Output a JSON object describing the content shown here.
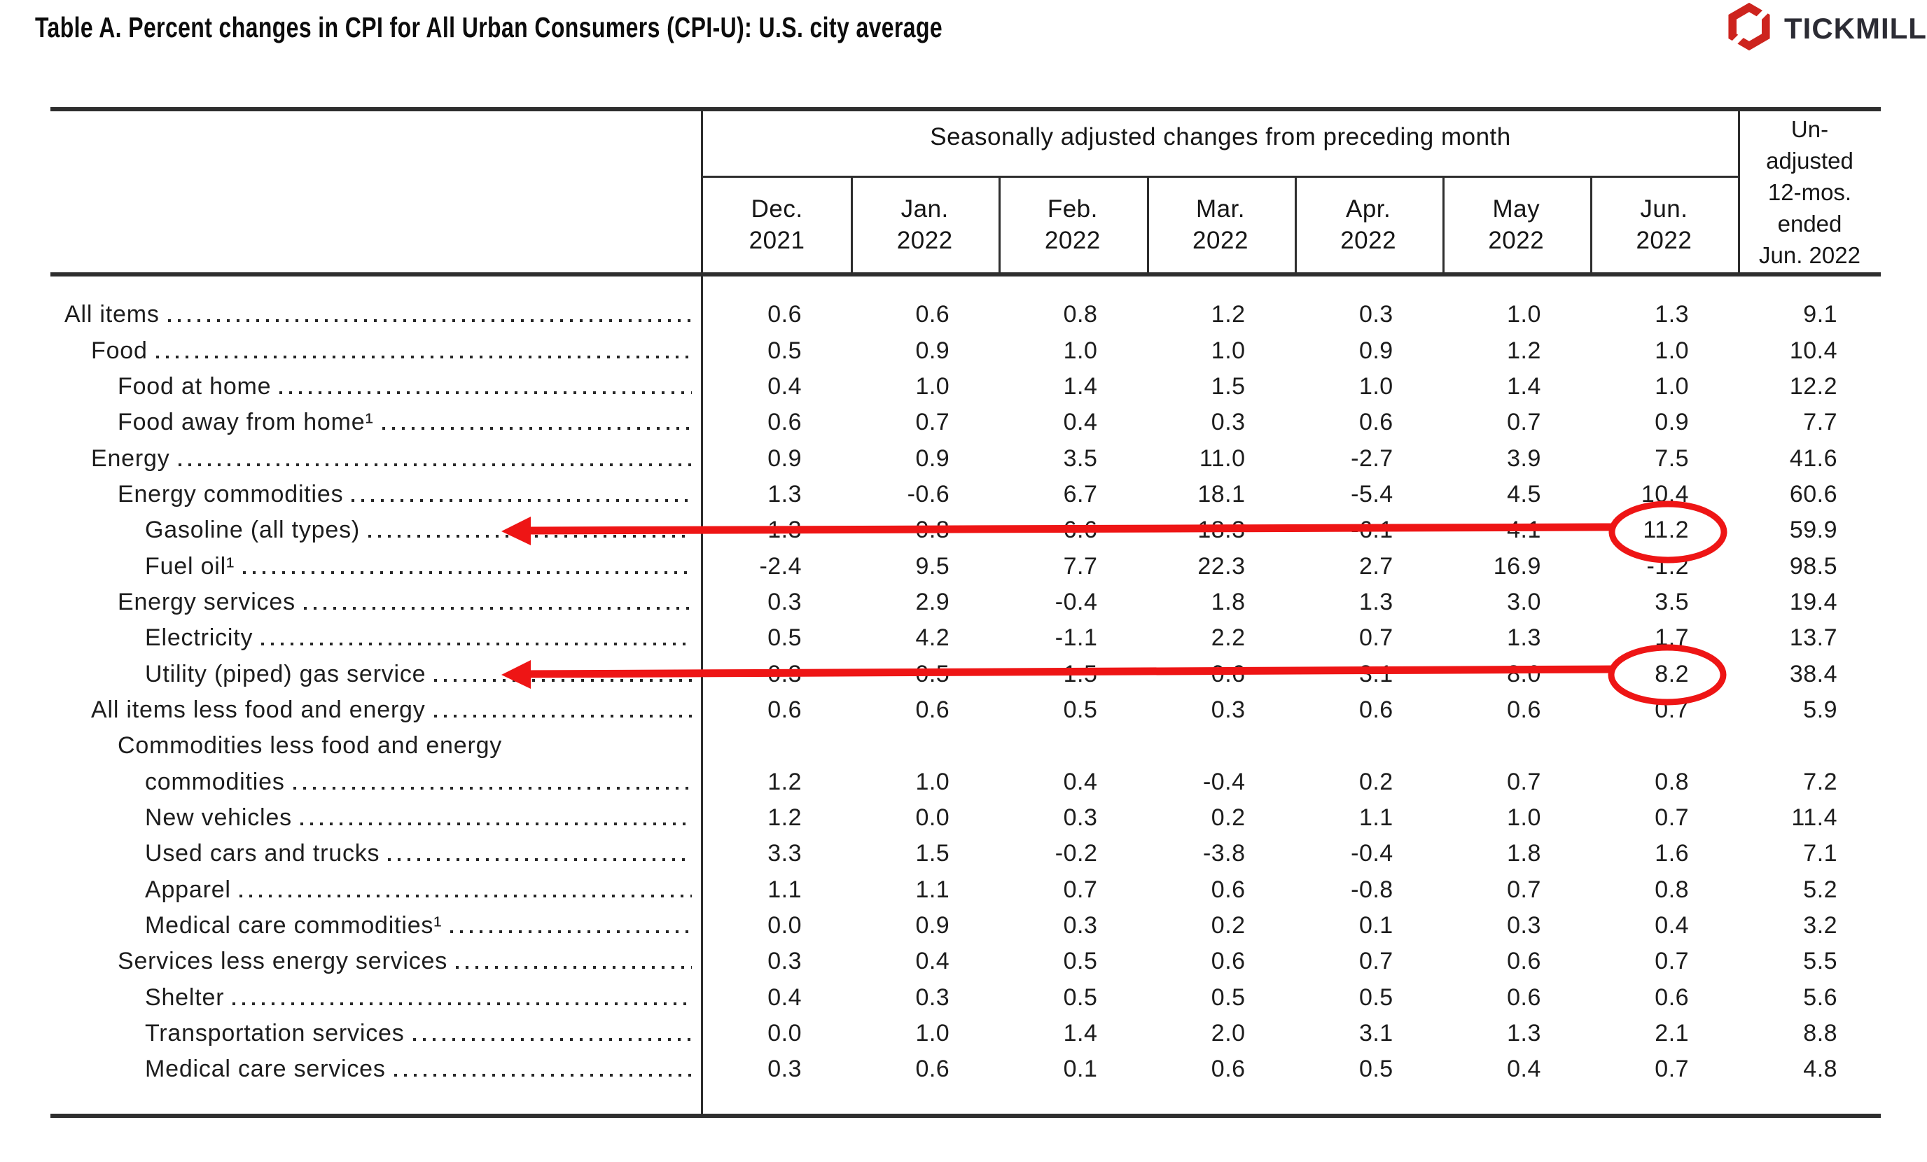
{
  "title": "Table A. Percent changes in CPI for All Urban Consumers (CPI-U): U.S. city average",
  "logo": {
    "brand": "TICKMILL"
  },
  "colors": {
    "annotation_red": "#ee1515",
    "logo_red": "#cd241e",
    "logo_text": "#2c2c34"
  },
  "table": {
    "header": {
      "group_title": "Seasonally adjusted changes from preceding month",
      "months": [
        {
          "line1": "Dec.",
          "line2": "2021"
        },
        {
          "line1": "Jan.",
          "line2": "2022"
        },
        {
          "line1": "Feb.",
          "line2": "2022"
        },
        {
          "line1": "Mar.",
          "line2": "2022"
        },
        {
          "line1": "Apr.",
          "line2": "2022"
        },
        {
          "line1": "May",
          "line2": "2022"
        },
        {
          "line1": "Jun.",
          "line2": "2022"
        }
      ],
      "unadjusted_lines": [
        "Un-",
        "adjusted",
        "12-mos.",
        "ended",
        "Jun. 2022"
      ]
    },
    "rows": [
      {
        "label": "All items",
        "indent": 0,
        "values": [
          "0.6",
          "0.6",
          "0.8",
          "1.2",
          "0.3",
          "1.0",
          "1.3",
          "9.1"
        ]
      },
      {
        "label": "Food",
        "indent": 1,
        "values": [
          "0.5",
          "0.9",
          "1.0",
          "1.0",
          "0.9",
          "1.2",
          "1.0",
          "10.4"
        ]
      },
      {
        "label": "Food at home",
        "indent": 2,
        "values": [
          "0.4",
          "1.0",
          "1.4",
          "1.5",
          "1.0",
          "1.4",
          "1.0",
          "12.2"
        ]
      },
      {
        "label": "Food away from home¹",
        "indent": 2,
        "values": [
          "0.6",
          "0.7",
          "0.4",
          "0.3",
          "0.6",
          "0.7",
          "0.9",
          "7.7"
        ]
      },
      {
        "label": "Energy",
        "indent": 1,
        "values": [
          "0.9",
          "0.9",
          "3.5",
          "11.0",
          "-2.7",
          "3.9",
          "7.5",
          "41.6"
        ]
      },
      {
        "label": "Energy commodities",
        "indent": 2,
        "values": [
          "1.3",
          "-0.6",
          "6.7",
          "18.1",
          "-5.4",
          "4.5",
          "10.4",
          "60.6"
        ]
      },
      {
        "label": "Gasoline (all types)",
        "indent": 3,
        "values": [
          "1.3",
          "-0.8",
          "6.6",
          "18.3",
          "-6.1",
          "4.1",
          "11.2",
          "59.9"
        ]
      },
      {
        "label": "Fuel oil¹",
        "indent": 3,
        "values": [
          "-2.4",
          "9.5",
          "7.7",
          "22.3",
          "2.7",
          "16.9",
          "-1.2",
          "98.5"
        ]
      },
      {
        "label": "Energy services",
        "indent": 2,
        "values": [
          "0.3",
          "2.9",
          "-0.4",
          "1.8",
          "1.3",
          "3.0",
          "3.5",
          "19.4"
        ]
      },
      {
        "label": "Electricity",
        "indent": 3,
        "values": [
          "0.5",
          "4.2",
          "-1.1",
          "2.2",
          "0.7",
          "1.3",
          "1.7",
          "13.7"
        ]
      },
      {
        "label": "Utility (piped) gas service",
        "indent": 3,
        "values": [
          "-0.3",
          "-0.5",
          "1.5",
          "0.6",
          "3.1",
          "8.0",
          "8.2",
          "38.4"
        ]
      },
      {
        "label": "All items less food and energy",
        "indent": 1,
        "values": [
          "0.6",
          "0.6",
          "0.5",
          "0.3",
          "0.6",
          "0.6",
          "0.7",
          "5.9"
        ]
      },
      {
        "label": "Commodities less food and energy",
        "indent": 2,
        "values": null
      },
      {
        "label": "commodities",
        "indent": 3,
        "values": [
          "1.2",
          "1.0",
          "0.4",
          "-0.4",
          "0.2",
          "0.7",
          "0.8",
          "7.2"
        ]
      },
      {
        "label": "New vehicles",
        "indent": 3,
        "values": [
          "1.2",
          "0.0",
          "0.3",
          "0.2",
          "1.1",
          "1.0",
          "0.7",
          "11.4"
        ]
      },
      {
        "label": "Used cars and trucks",
        "indent": 3,
        "values": [
          "3.3",
          "1.5",
          "-0.2",
          "-3.8",
          "-0.4",
          "1.8",
          "1.6",
          "7.1"
        ]
      },
      {
        "label": "Apparel",
        "indent": 3,
        "values": [
          "1.1",
          "1.1",
          "0.7",
          "0.6",
          "-0.8",
          "0.7",
          "0.8",
          "5.2"
        ]
      },
      {
        "label": "Medical care commodities¹",
        "indent": 3,
        "values": [
          "0.0",
          "0.9",
          "0.3",
          "0.2",
          "0.1",
          "0.3",
          "0.4",
          "3.2"
        ]
      },
      {
        "label": "Services less energy services",
        "indent": 2,
        "values": [
          "0.3",
          "0.4",
          "0.5",
          "0.6",
          "0.7",
          "0.6",
          "0.7",
          "5.5"
        ]
      },
      {
        "label": "Shelter",
        "indent": 3,
        "values": [
          "0.4",
          "0.3",
          "0.5",
          "0.5",
          "0.5",
          "0.6",
          "0.6",
          "5.6"
        ]
      },
      {
        "label": "Transportation services",
        "indent": 3,
        "values": [
          "0.0",
          "1.0",
          "1.4",
          "2.0",
          "3.1",
          "1.3",
          "2.1",
          "8.8"
        ]
      },
      {
        "label": "Medical care services",
        "indent": 3,
        "values": [
          "0.3",
          "0.6",
          "0.1",
          "0.6",
          "0.5",
          "0.4",
          "0.7",
          "4.8"
        ]
      }
    ]
  },
  "annotations": {
    "items": [
      {
        "type": "arrow-strike-circle",
        "row": "Gasoline (all types)",
        "circled_column": "Jun. 2022",
        "circled_value": "11.2"
      },
      {
        "type": "arrow-strike-circle",
        "row": "Utility (piped) gas service",
        "circled_column": "Jun. 2022",
        "circled_value": "8.2"
      }
    ]
  }
}
